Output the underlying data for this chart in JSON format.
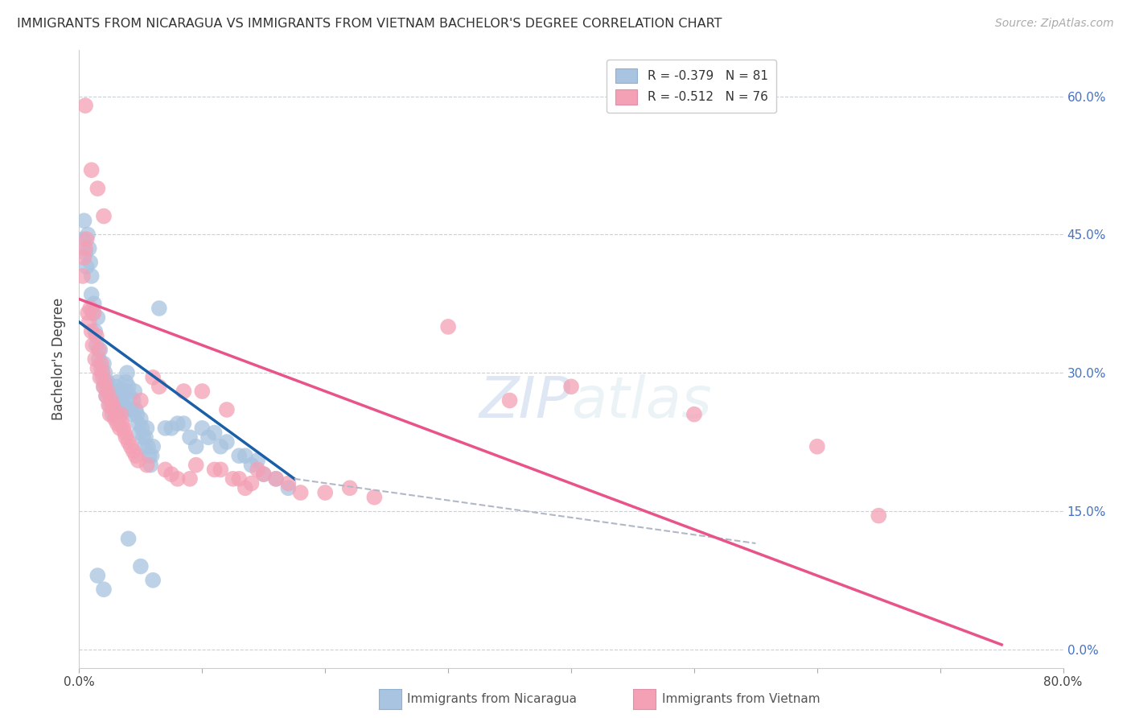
{
  "title": "IMMIGRANTS FROM NICARAGUA VS IMMIGRANTS FROM VIETNAM BACHELOR'S DEGREE CORRELATION CHART",
  "source": "Source: ZipAtlas.com",
  "ylabel": "Bachelor's Degree",
  "right_yticks": [
    "60.0%",
    "45.0%",
    "30.0%",
    "15.0%",
    "0.0%"
  ],
  "right_ytick_vals": [
    60.0,
    45.0,
    30.0,
    15.0,
    0.0
  ],
  "xlim": [
    0.0,
    80.0
  ],
  "ylim": [
    -2.0,
    65.0
  ],
  "color_nicaragua": "#a8c4e0",
  "color_vietnam": "#f4a0b5",
  "color_line_nicaragua": "#1a5fa8",
  "color_line_vietnam": "#e8538a",
  "color_line_ext": "#b0b8c8",
  "watermark_zip": "ZIP",
  "watermark_atlas": "atlas",
  "scatter_nicaragua": [
    [
      0.3,
      44.5
    ],
    [
      0.4,
      46.5
    ],
    [
      0.5,
      43.0
    ],
    [
      0.6,
      41.5
    ],
    [
      0.7,
      45.0
    ],
    [
      0.8,
      43.5
    ],
    [
      0.9,
      42.0
    ],
    [
      1.0,
      40.5
    ],
    [
      1.0,
      38.5
    ],
    [
      1.1,
      36.5
    ],
    [
      1.2,
      37.5
    ],
    [
      1.3,
      34.5
    ],
    [
      1.4,
      33.0
    ],
    [
      1.5,
      36.0
    ],
    [
      1.6,
      31.5
    ],
    [
      1.7,
      32.5
    ],
    [
      1.8,
      30.5
    ],
    [
      1.9,
      29.5
    ],
    [
      2.0,
      31.0
    ],
    [
      2.0,
      28.5
    ],
    [
      2.1,
      30.0
    ],
    [
      2.2,
      27.5
    ],
    [
      2.3,
      29.0
    ],
    [
      2.4,
      28.0
    ],
    [
      2.5,
      26.5
    ],
    [
      2.6,
      27.0
    ],
    [
      2.7,
      25.5
    ],
    [
      2.8,
      26.5
    ],
    [
      3.0,
      28.5
    ],
    [
      3.1,
      29.0
    ],
    [
      3.2,
      28.0
    ],
    [
      3.3,
      27.0
    ],
    [
      3.4,
      26.0
    ],
    [
      3.5,
      27.5
    ],
    [
      3.6,
      26.5
    ],
    [
      3.7,
      28.0
    ],
    [
      3.8,
      29.0
    ],
    [
      3.9,
      30.0
    ],
    [
      4.0,
      28.5
    ],
    [
      4.1,
      27.5
    ],
    [
      4.2,
      26.0
    ],
    [
      4.3,
      25.5
    ],
    [
      4.4,
      27.0
    ],
    [
      4.5,
      28.0
    ],
    [
      4.6,
      26.0
    ],
    [
      4.7,
      25.5
    ],
    [
      4.8,
      24.5
    ],
    [
      4.9,
      23.5
    ],
    [
      5.0,
      25.0
    ],
    [
      5.1,
      24.0
    ],
    [
      5.2,
      23.0
    ],
    [
      5.3,
      22.0
    ],
    [
      5.4,
      23.0
    ],
    [
      5.5,
      24.0
    ],
    [
      5.6,
      22.0
    ],
    [
      5.7,
      21.0
    ],
    [
      5.8,
      20.0
    ],
    [
      5.9,
      21.0
    ],
    [
      6.0,
      22.0
    ],
    [
      6.5,
      37.0
    ],
    [
      7.0,
      24.0
    ],
    [
      7.5,
      24.0
    ],
    [
      8.0,
      24.5
    ],
    [
      8.5,
      24.5
    ],
    [
      9.0,
      23.0
    ],
    [
      9.5,
      22.0
    ],
    [
      10.0,
      24.0
    ],
    [
      10.5,
      23.0
    ],
    [
      11.0,
      23.5
    ],
    [
      11.5,
      22.0
    ],
    [
      12.0,
      22.5
    ],
    [
      13.0,
      21.0
    ],
    [
      13.5,
      21.0
    ],
    [
      14.0,
      20.0
    ],
    [
      14.5,
      20.5
    ],
    [
      15.0,
      19.0
    ],
    [
      16.0,
      18.5
    ],
    [
      17.0,
      17.5
    ],
    [
      4.0,
      12.0
    ],
    [
      5.0,
      9.0
    ],
    [
      6.0,
      7.5
    ],
    [
      1.5,
      8.0
    ],
    [
      2.0,
      6.5
    ]
  ],
  "scatter_vietnam": [
    [
      0.3,
      40.5
    ],
    [
      0.4,
      42.5
    ],
    [
      0.5,
      43.5
    ],
    [
      0.5,
      59.0
    ],
    [
      0.6,
      44.5
    ],
    [
      0.7,
      36.5
    ],
    [
      0.8,
      35.5
    ],
    [
      0.9,
      37.0
    ],
    [
      1.0,
      34.5
    ],
    [
      1.0,
      52.0
    ],
    [
      1.1,
      33.0
    ],
    [
      1.2,
      36.5
    ],
    [
      1.3,
      31.5
    ],
    [
      1.4,
      34.0
    ],
    [
      1.5,
      30.5
    ],
    [
      1.5,
      50.0
    ],
    [
      1.6,
      32.5
    ],
    [
      1.7,
      29.5
    ],
    [
      1.8,
      31.0
    ],
    [
      1.9,
      30.0
    ],
    [
      2.0,
      28.5
    ],
    [
      2.0,
      47.0
    ],
    [
      2.1,
      29.0
    ],
    [
      2.2,
      27.5
    ],
    [
      2.3,
      28.0
    ],
    [
      2.4,
      26.5
    ],
    [
      2.5,
      25.5
    ],
    [
      2.6,
      27.0
    ],
    [
      2.7,
      26.5
    ],
    [
      2.8,
      26.0
    ],
    [
      2.9,
      25.0
    ],
    [
      3.0,
      25.5
    ],
    [
      3.1,
      24.5
    ],
    [
      3.2,
      25.0
    ],
    [
      3.3,
      24.0
    ],
    [
      3.4,
      25.5
    ],
    [
      3.5,
      24.5
    ],
    [
      3.6,
      24.0
    ],
    [
      3.7,
      23.5
    ],
    [
      3.8,
      23.0
    ],
    [
      4.0,
      22.5
    ],
    [
      4.2,
      22.0
    ],
    [
      4.4,
      21.5
    ],
    [
      4.6,
      21.0
    ],
    [
      4.8,
      20.5
    ],
    [
      5.0,
      27.0
    ],
    [
      5.5,
      20.0
    ],
    [
      6.0,
      29.5
    ],
    [
      6.5,
      28.5
    ],
    [
      7.0,
      19.5
    ],
    [
      7.5,
      19.0
    ],
    [
      8.0,
      18.5
    ],
    [
      8.5,
      28.0
    ],
    [
      9.0,
      18.5
    ],
    [
      9.5,
      20.0
    ],
    [
      10.0,
      28.0
    ],
    [
      11.0,
      19.5
    ],
    [
      11.5,
      19.5
    ],
    [
      12.0,
      26.0
    ],
    [
      12.5,
      18.5
    ],
    [
      13.0,
      18.5
    ],
    [
      13.5,
      17.5
    ],
    [
      14.0,
      18.0
    ],
    [
      14.5,
      19.5
    ],
    [
      15.0,
      19.0
    ],
    [
      16.0,
      18.5
    ],
    [
      17.0,
      18.0
    ],
    [
      18.0,
      17.0
    ],
    [
      20.0,
      17.0
    ],
    [
      22.0,
      17.5
    ],
    [
      24.0,
      16.5
    ],
    [
      30.0,
      35.0
    ],
    [
      35.0,
      27.0
    ],
    [
      40.0,
      28.5
    ],
    [
      50.0,
      25.5
    ],
    [
      60.0,
      22.0
    ],
    [
      65.0,
      14.5
    ]
  ],
  "line_nicaragua": {
    "x_start": 0.0,
    "y_start": 35.5,
    "x_end": 17.5,
    "y_end": 18.5
  },
  "line_vietnam": {
    "x_start": 0.0,
    "y_start": 38.0,
    "x_end": 75.0,
    "y_end": 0.5
  },
  "line_ext_nicaragua": {
    "x_start": 17.5,
    "y_start": 18.5,
    "x_end": 55.0,
    "y_end": 11.5
  },
  "grid_yticks": [
    60.0,
    45.0,
    30.0,
    15.0,
    0.0
  ]
}
